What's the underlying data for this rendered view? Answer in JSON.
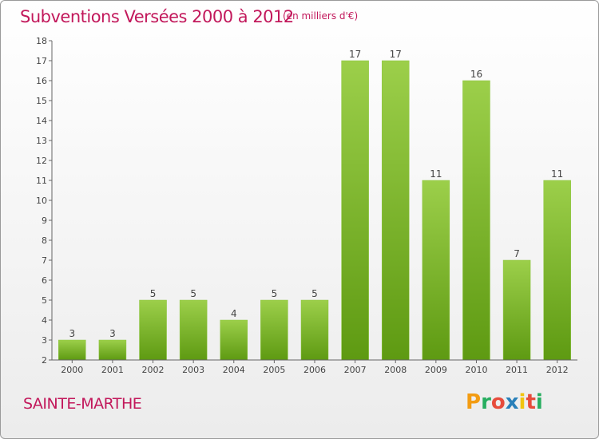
{
  "header": {
    "title": "Subventions Versées 2000 à 2012",
    "subtitle": "(en milliers d'€)"
  },
  "commune_name": "SAINTE-MARTHE",
  "logo": {
    "letters": [
      "P",
      "r",
      "o",
      "x",
      "i",
      "t",
      "i"
    ],
    "colors": [
      "#f39c12",
      "#27ae60",
      "#e74c3c",
      "#2980b9",
      "#f1c40f",
      "#e74c3c",
      "#27ae60"
    ]
  },
  "colors": {
    "bar_light": "#9ccf4a",
    "bar_dark": "#5e9a12",
    "title": "#c2185b"
  },
  "chart_data": {
    "type": "bar",
    "title": "Subventions Versées 2000 à 2012",
    "subtitle": "(en milliers d'€)",
    "categories": [
      "2000",
      "2001",
      "2002",
      "2003",
      "2004",
      "2005",
      "2006",
      "2007",
      "2008",
      "2009",
      "2010",
      "2011",
      "2012"
    ],
    "values": [
      3,
      3,
      5,
      5,
      4,
      5,
      5,
      17,
      17,
      11,
      16,
      7,
      11
    ],
    "ylim": [
      2,
      18
    ],
    "yticks": [
      2,
      3,
      4,
      5,
      6,
      7,
      8,
      9,
      10,
      11,
      12,
      13,
      14,
      15,
      16,
      17,
      18
    ],
    "grid": false,
    "data_labels": true
  }
}
